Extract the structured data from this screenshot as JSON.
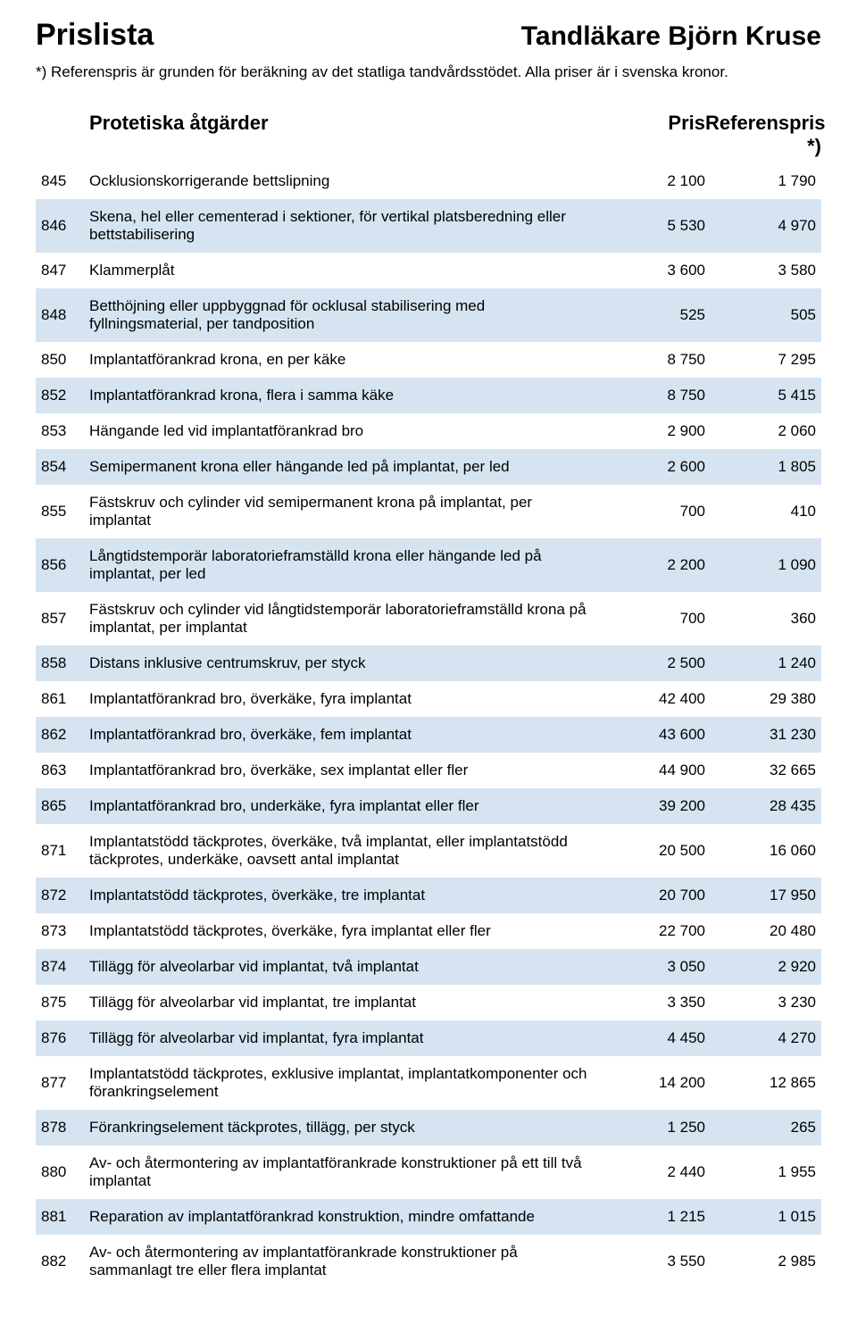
{
  "header": {
    "title": "Prislista",
    "provider": "Tandläkare Björn Kruse",
    "note": "*) Referenspris är grunden för beräkning av det statliga tandvårdsstödet. Alla priser är i svenska kronor."
  },
  "section": {
    "title": "Protetiska åtgärder",
    "price_label": "Pris",
    "ref_label": "Referenspris *)"
  },
  "colors": {
    "shaded_row": "#d6e4f2",
    "background": "#ffffff",
    "text": "#000000"
  },
  "rows": [
    {
      "code": "845",
      "desc": "Ocklusionskorrigerande bettslipning",
      "price": "2 100",
      "ref": "1 790",
      "shaded": false
    },
    {
      "code": "846",
      "desc": "Skena, hel eller cementerad i sektioner, för vertikal platsberedning eller bettstabilisering",
      "price": "5 530",
      "ref": "4 970",
      "shaded": true
    },
    {
      "code": "847",
      "desc": "Klammerplåt",
      "price": "3 600",
      "ref": "3 580",
      "shaded": false
    },
    {
      "code": "848",
      "desc": "Betthöjning eller uppbyggnad för ocklusal stabilisering med fyllningsmaterial, per tandposition",
      "price": "525",
      "ref": "505",
      "shaded": true
    },
    {
      "code": "850",
      "desc": "Implantatförankrad krona, en per käke",
      "price": "8 750",
      "ref": "7 295",
      "shaded": false
    },
    {
      "code": "852",
      "desc": "Implantatförankrad krona, flera i samma käke",
      "price": "8 750",
      "ref": "5 415",
      "shaded": true
    },
    {
      "code": "853",
      "desc": "Hängande led vid implantatförankrad bro",
      "price": "2 900",
      "ref": "2 060",
      "shaded": false
    },
    {
      "code": "854",
      "desc": "Semipermanent krona eller hängande led på implantat, per led",
      "price": "2 600",
      "ref": "1 805",
      "shaded": true
    },
    {
      "code": "855",
      "desc": "Fästskruv och cylinder vid semipermanent krona på implantat, per implantat",
      "price": "700",
      "ref": "410",
      "shaded": false
    },
    {
      "code": "856",
      "desc": "Långtidstemporär laboratorieframställd krona eller hängande led på implantat, per led",
      "price": "2 200",
      "ref": "1 090",
      "shaded": true
    },
    {
      "code": "857",
      "desc": "Fästskruv och cylinder vid långtidstemporär laboratorieframställd krona på implantat, per implantat",
      "price": "700",
      "ref": "360",
      "shaded": false
    },
    {
      "code": "858",
      "desc": "Distans inklusive centrumskruv, per styck",
      "price": "2 500",
      "ref": "1 240",
      "shaded": true
    },
    {
      "code": "861",
      "desc": "Implantatförankrad bro, överkäke, fyra implantat",
      "price": "42 400",
      "ref": "29 380",
      "shaded": false
    },
    {
      "code": "862",
      "desc": "Implantatförankrad bro, överkäke, fem implantat",
      "price": "43 600",
      "ref": "31 230",
      "shaded": true
    },
    {
      "code": "863",
      "desc": "Implantatförankrad bro, överkäke, sex implantat eller fler",
      "price": "44 900",
      "ref": "32 665",
      "shaded": false
    },
    {
      "code": "865",
      "desc": "Implantatförankrad bro, underkäke, fyra implantat eller fler",
      "price": "39 200",
      "ref": "28 435",
      "shaded": true
    },
    {
      "code": "871",
      "desc": "Implantatstödd täckprotes, överkäke, två implantat, eller implantatstödd täckprotes, underkäke, oavsett antal implantat",
      "price": "20 500",
      "ref": "16 060",
      "shaded": false
    },
    {
      "code": "872",
      "desc": "Implantatstödd täckprotes, överkäke, tre implantat",
      "price": "20 700",
      "ref": "17 950",
      "shaded": true
    },
    {
      "code": "873",
      "desc": "Implantatstödd täckprotes, överkäke, fyra implantat eller fler",
      "price": "22 700",
      "ref": "20 480",
      "shaded": false
    },
    {
      "code": "874",
      "desc": "Tillägg för alveolarbar vid implantat, två implantat",
      "price": "3 050",
      "ref": "2 920",
      "shaded": true
    },
    {
      "code": "875",
      "desc": "Tillägg för alveolarbar vid implantat, tre implantat",
      "price": "3 350",
      "ref": "3 230",
      "shaded": false
    },
    {
      "code": "876",
      "desc": "Tillägg för alveolarbar vid implantat, fyra implantat",
      "price": "4 450",
      "ref": "4 270",
      "shaded": true
    },
    {
      "code": "877",
      "desc": "Implantatstödd täckprotes, exklusive implantat, implantatkomponenter och förankringselement",
      "price": "14 200",
      "ref": "12 865",
      "shaded": false
    },
    {
      "code": "878",
      "desc": "Förankringselement täckprotes, tillägg, per styck",
      "price": "1 250",
      "ref": "265",
      "shaded": true
    },
    {
      "code": "880",
      "desc": "Av- och återmontering av implantatförankrade konstruktioner på ett till två implantat",
      "price": "2 440",
      "ref": "1 955",
      "shaded": false
    },
    {
      "code": "881",
      "desc": "Reparation av implantatförankrad konstruktion, mindre omfattande",
      "price": "1 215",
      "ref": "1 015",
      "shaded": true
    },
    {
      "code": "882",
      "desc": "Av- och återmontering av implantatförankrade konstruktioner på sammanlagt tre eller flera implantat",
      "price": "3 550",
      "ref": "2 985",
      "shaded": false
    }
  ]
}
